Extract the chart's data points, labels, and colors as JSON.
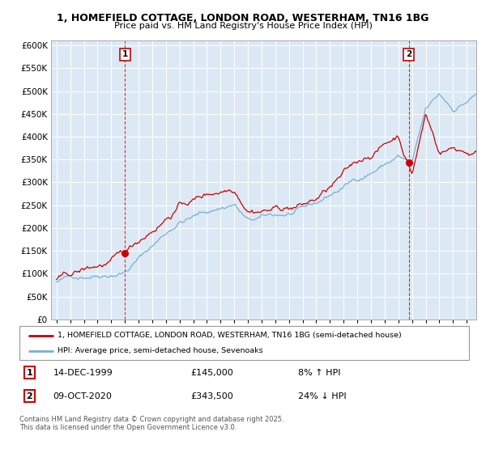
{
  "title": "1, HOMEFIELD COTTAGE, LONDON ROAD, WESTERHAM, TN16 1BG",
  "subtitle": "Price paid vs. HM Land Registry's House Price Index (HPI)",
  "legend_property": "1, HOMEFIELD COTTAGE, LONDON ROAD, WESTERHAM, TN16 1BG (semi-detached house)",
  "legend_hpi": "HPI: Average price, semi-detached house, Sevenoaks",
  "annotation1_date": "14-DEC-1999",
  "annotation1_price": "£145,000",
  "annotation1_pct": "8% ↑ HPI",
  "annotation2_date": "09-OCT-2020",
  "annotation2_price": "£343,500",
  "annotation2_pct": "24% ↓ HPI",
  "footnote": "Contains HM Land Registry data © Crown copyright and database right 2025.\nThis data is licensed under the Open Government Licence v3.0.",
  "sale1_year": 2000.0,
  "sale1_value": 145000,
  "sale2_year": 2020.78,
  "sale2_value": 343500,
  "ylim_min": 0,
  "ylim_max": 610000,
  "xlim_min": 1994.6,
  "xlim_max": 2025.7,
  "property_color": "#cc0000",
  "hpi_color": "#7aafd4",
  "chart_bg": "#dce9f5",
  "background_color": "#ffffff",
  "grid_color": "#ffffff",
  "title_fontsize": 9.0,
  "subtitle_fontsize": 8.0
}
